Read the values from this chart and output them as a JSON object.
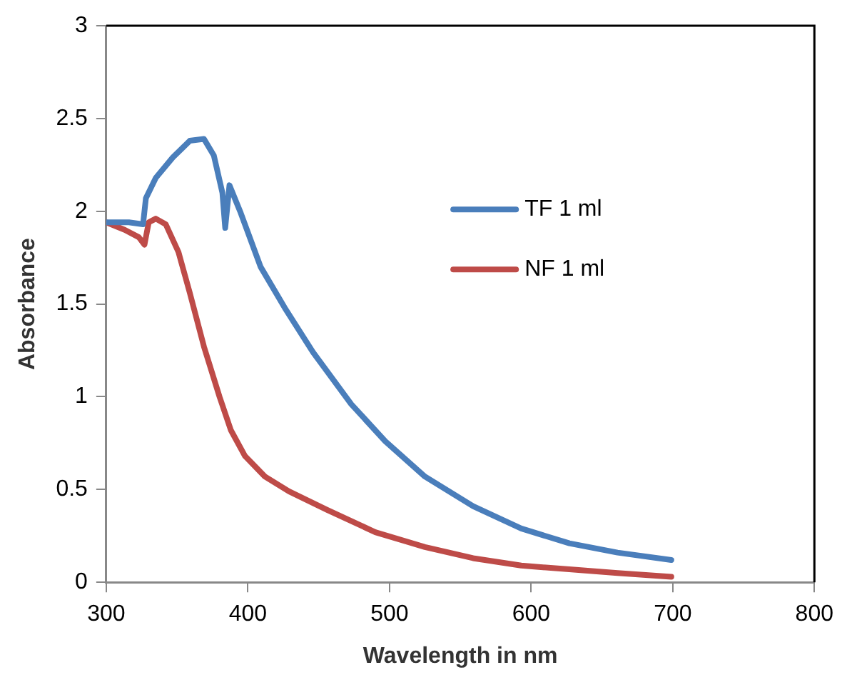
{
  "chart_data": {
    "type": "line",
    "xlabel": "Wavelength in nm",
    "ylabel": "Absorbance",
    "xlim": [
      300,
      800
    ],
    "xticks": [
      300,
      400,
      500,
      600,
      700,
      800
    ],
    "ylim": [
      0,
      3
    ],
    "yticks": [
      0,
      0.5,
      1,
      1.5,
      2,
      2.5,
      3
    ],
    "grid": false,
    "legend": "right",
    "marker": "none",
    "line_style": "solid",
    "series": [
      {
        "name": "TF 1 ml",
        "color": "#4a7ebb",
        "x": [
          300,
          316,
          326,
          328,
          335,
          347,
          359,
          369,
          376,
          382,
          384,
          387,
          395,
          409,
          426,
          446,
          473,
          497,
          525,
          559,
          593,
          627,
          661,
          699
        ],
        "values": [
          1.94,
          1.94,
          1.93,
          2.07,
          2.18,
          2.29,
          2.38,
          2.39,
          2.3,
          2.1,
          1.91,
          2.14,
          1.99,
          1.7,
          1.48,
          1.24,
          0.96,
          0.76,
          0.57,
          0.41,
          0.29,
          0.21,
          0.16,
          0.12
        ]
      },
      {
        "name": "NF 1 ml",
        "color": "#be4b48",
        "x": [
          300,
          313,
          323,
          327,
          330,
          335,
          342,
          351,
          359,
          369,
          380,
          388,
          398,
          412,
          429,
          456,
          490,
          525,
          559,
          593,
          627,
          661,
          699
        ],
        "values": [
          1.94,
          1.9,
          1.86,
          1.82,
          1.94,
          1.96,
          1.93,
          1.78,
          1.56,
          1.27,
          1.0,
          0.82,
          0.68,
          0.57,
          0.49,
          0.39,
          0.27,
          0.19,
          0.13,
          0.09,
          0.07,
          0.05,
          0.03
        ]
      }
    ]
  }
}
